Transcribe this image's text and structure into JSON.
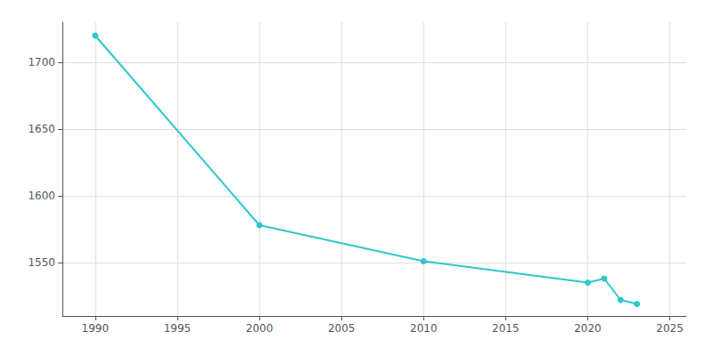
{
  "chart_data": {
    "type": "line",
    "x": [
      1990,
      2000,
      2010,
      2020,
      2021,
      2022,
      2023
    ],
    "values": [
      1720,
      1578,
      1551,
      1535,
      1538,
      1522,
      1519
    ],
    "color": "#2ec8c8",
    "marker": "circle",
    "xlim": [
      1988,
      2026
    ],
    "ylim": [
      1510,
      1730
    ],
    "xticks": [
      1990,
      1995,
      2000,
      2005,
      2010,
      2015,
      2020,
      2025
    ],
    "yticks": [
      1550,
      1600,
      1650,
      1700
    ],
    "grid": true
  }
}
